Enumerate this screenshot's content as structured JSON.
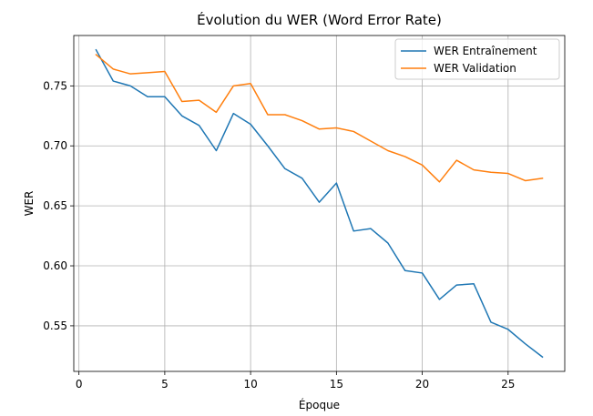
{
  "chart_data": {
    "type": "line",
    "title": "Évolution du WER (Word Error Rate)",
    "xlabel": "Époque",
    "ylabel": "WER",
    "xlim": [
      -0.3,
      28.3
    ],
    "ylim": [
      0.512,
      0.792
    ],
    "xticks": [
      0,
      5,
      10,
      15,
      20,
      25
    ],
    "yticks": [
      0.55,
      0.6,
      0.65,
      0.7,
      0.75
    ],
    "xtick_labels": [
      "0",
      "5",
      "10",
      "15",
      "20",
      "25"
    ],
    "ytick_labels": [
      "0.55",
      "0.60",
      "0.65",
      "0.70",
      "0.75"
    ],
    "grid": true,
    "legend_position": "top-right",
    "x": [
      1,
      2,
      3,
      4,
      5,
      6,
      7,
      8,
      9,
      10,
      11,
      12,
      13,
      14,
      15,
      16,
      17,
      18,
      19,
      20,
      21,
      22,
      23,
      24,
      25,
      26,
      27
    ],
    "series": [
      {
        "name": "WER Entraînement",
        "color": "#1f77b4",
        "values": [
          0.78,
          0.754,
          0.75,
          0.741,
          0.741,
          0.725,
          0.717,
          0.696,
          0.727,
          0.718,
          0.7,
          0.681,
          0.673,
          0.653,
          0.669,
          0.629,
          0.631,
          0.619,
          0.596,
          0.594,
          0.572,
          0.584,
          0.585,
          0.553,
          0.547,
          0.535,
          0.524
        ]
      },
      {
        "name": "WER Validation",
        "color": "#ff7f0e",
        "values": [
          0.776,
          0.764,
          0.76,
          0.761,
          0.762,
          0.737,
          0.738,
          0.728,
          0.75,
          0.752,
          0.726,
          0.726,
          0.721,
          0.714,
          0.715,
          0.712,
          0.704,
          0.696,
          0.691,
          0.684,
          0.67,
          0.688,
          0.68,
          0.678,
          0.677,
          0.671,
          0.673
        ]
      }
    ]
  }
}
